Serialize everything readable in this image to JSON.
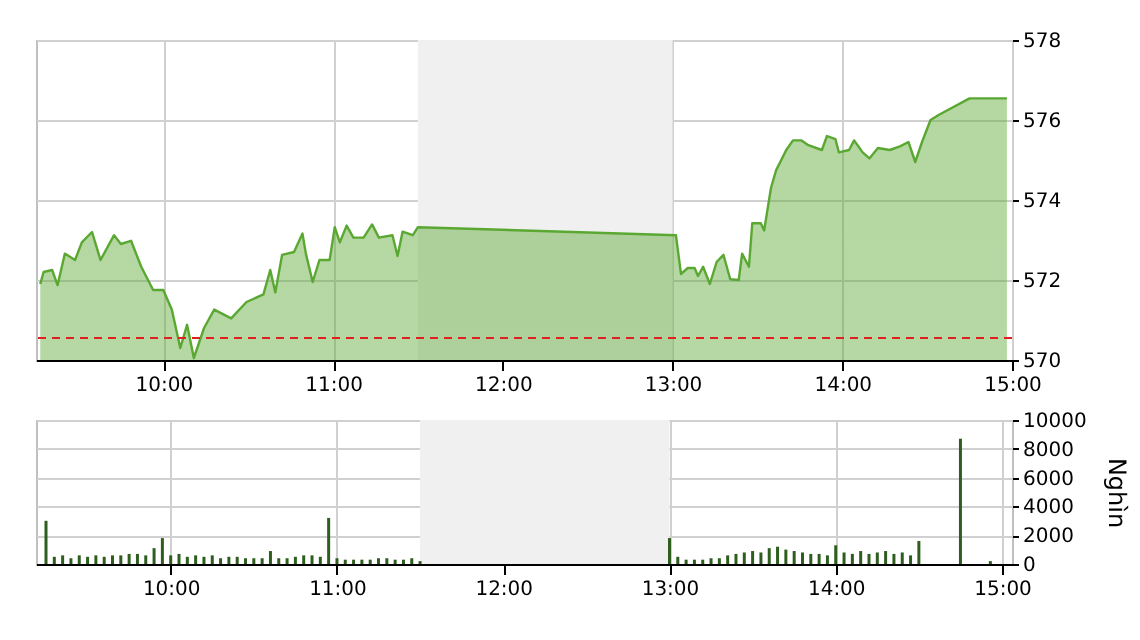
{
  "chart_data": [
    {
      "type": "area",
      "ylabel": null,
      "legend": false,
      "grid": true,
      "xlim": [
        9.25,
        15.0
      ],
      "xticks": [
        {
          "value": 10,
          "label": "10:00"
        },
        {
          "value": 11,
          "label": "11:00"
        },
        {
          "value": 12,
          "label": "12:00"
        },
        {
          "value": 13,
          "label": "13:00"
        },
        {
          "value": 14,
          "label": "14:00"
        },
        {
          "value": 15,
          "label": "15:00"
        }
      ],
      "ylim": [
        570,
        578
      ],
      "yticks": [
        570,
        572,
        574,
        576,
        578
      ],
      "bands": [
        {
          "axis": "x",
          "from": 11.5,
          "to": 13.0,
          "color": "#f0f0f0"
        }
      ],
      "ref_lines": [
        {
          "axis": "y",
          "value": 570.55,
          "color": "#e02020",
          "line_style": "dashed"
        }
      ],
      "series": [
        {
          "color": "#5aa832",
          "x": [
            9.275,
            9.295,
            9.345,
            9.377,
            9.42,
            9.48,
            9.52,
            9.58,
            9.63,
            9.71,
            9.75,
            9.81,
            9.87,
            9.94,
            10.0,
            10.05,
            10.1,
            10.14,
            10.18,
            10.24,
            10.3,
            10.4,
            10.49,
            10.59,
            10.63,
            10.66,
            10.7,
            10.77,
            10.82,
            10.84,
            10.88,
            10.92,
            10.98,
            11.01,
            11.04,
            11.08,
            11.12,
            11.18,
            11.23,
            11.27,
            11.35,
            11.38,
            11.41,
            11.47,
            11.5,
            13.02,
            13.05,
            13.09,
            13.13,
            13.15,
            13.18,
            13.22,
            13.26,
            13.3,
            13.34,
            13.39,
            13.41,
            13.45,
            13.47,
            13.52,
            13.54,
            13.58,
            13.61,
            13.67,
            13.71,
            13.76,
            13.8,
            13.88,
            13.91,
            13.96,
            13.98,
            14.04,
            14.07,
            14.12,
            14.16,
            14.21,
            14.28,
            14.34,
            14.39,
            14.43,
            14.47,
            14.52,
            14.57,
            14.75,
            14.97
          ],
          "values": [
            571.9,
            572.2,
            572.25,
            571.87,
            572.66,
            572.5,
            572.94,
            573.2,
            572.5,
            573.12,
            572.9,
            572.98,
            572.33,
            571.75,
            571.75,
            571.26,
            570.3,
            570.88,
            570.05,
            570.8,
            571.26,
            571.04,
            571.45,
            571.64,
            572.25,
            571.69,
            572.63,
            572.7,
            573.16,
            572.66,
            571.95,
            572.5,
            572.5,
            573.32,
            572.94,
            573.36,
            573.06,
            573.06,
            573.39,
            573.06,
            573.12,
            572.6,
            573.21,
            573.12,
            573.32,
            573.12,
            572.15,
            572.3,
            572.3,
            572.1,
            572.33,
            571.9,
            572.45,
            572.63,
            572.02,
            572.0,
            572.66,
            572.33,
            573.42,
            573.42,
            573.24,
            574.3,
            574.74,
            575.25,
            575.49,
            575.49,
            575.37,
            575.25,
            575.6,
            575.52,
            575.19,
            575.25,
            575.49,
            575.19,
            575.04,
            575.3,
            575.25,
            575.34,
            575.45,
            574.95,
            575.45,
            576.0,
            576.13,
            576.54,
            576.54
          ]
        }
      ]
    },
    {
      "type": "bar",
      "ylabel": "Nghìn",
      "legend": false,
      "grid": true,
      "xlim": [
        9.25,
        15.0
      ],
      "xticks": [
        {
          "value": 10,
          "label": "10:00"
        },
        {
          "value": 11,
          "label": "11:00"
        },
        {
          "value": 12,
          "label": "12:00"
        },
        {
          "value": 13,
          "label": "13:00"
        },
        {
          "value": 14,
          "label": "14:00"
        },
        {
          "value": 15,
          "label": "15:00"
        }
      ],
      "ylim": [
        0,
        10000
      ],
      "yticks": [
        0,
        2000,
        4000,
        6000,
        8000,
        10000
      ],
      "bands": [
        {
          "axis": "x",
          "from": 11.5,
          "to": 13.0,
          "color": "#f0f0f0"
        }
      ],
      "series": [
        {
          "color": "#2e5e1e",
          "x": [
            9.25,
            9.3,
            9.35,
            9.4,
            9.45,
            9.5,
            9.55,
            9.6,
            9.65,
            9.7,
            9.75,
            9.8,
            9.85,
            9.9,
            9.95,
            10.0,
            10.05,
            10.1,
            10.15,
            10.2,
            10.25,
            10.3,
            10.35,
            10.4,
            10.45,
            10.5,
            10.55,
            10.6,
            10.65,
            10.7,
            10.75,
            10.8,
            10.85,
            10.9,
            10.95,
            11.0,
            11.05,
            11.1,
            11.15,
            11.2,
            11.25,
            11.3,
            11.35,
            11.4,
            11.45,
            11.5,
            13.0,
            13.05,
            13.1,
            13.15,
            13.2,
            13.25,
            13.3,
            13.35,
            13.4,
            13.45,
            13.5,
            13.55,
            13.6,
            13.65,
            13.7,
            13.75,
            13.8,
            13.85,
            13.9,
            13.95,
            14.0,
            14.05,
            14.1,
            14.15,
            14.2,
            14.25,
            14.3,
            14.35,
            14.4,
            14.45,
            14.5,
            14.75,
            14.93
          ],
          "values": [
            3000,
            500,
            600,
            400,
            600,
            500,
            600,
            500,
            600,
            600,
            700,
            700,
            600,
            1100,
            1800,
            600,
            700,
            500,
            600,
            500,
            600,
            400,
            500,
            500,
            400,
            400,
            400,
            900,
            400,
            400,
            500,
            600,
            600,
            500,
            3200,
            400,
            300,
            300,
            300,
            300,
            400,
            400,
            300,
            300,
            400,
            200,
            1800,
            500,
            300,
            300,
            300,
            400,
            400,
            600,
            700,
            800,
            900,
            800,
            1100,
            1200,
            1000,
            900,
            800,
            700,
            700,
            600,
            1300,
            800,
            700,
            900,
            700,
            800,
            900,
            700,
            800,
            600,
            1600,
            8700,
            200
          ]
        }
      ]
    }
  ]
}
